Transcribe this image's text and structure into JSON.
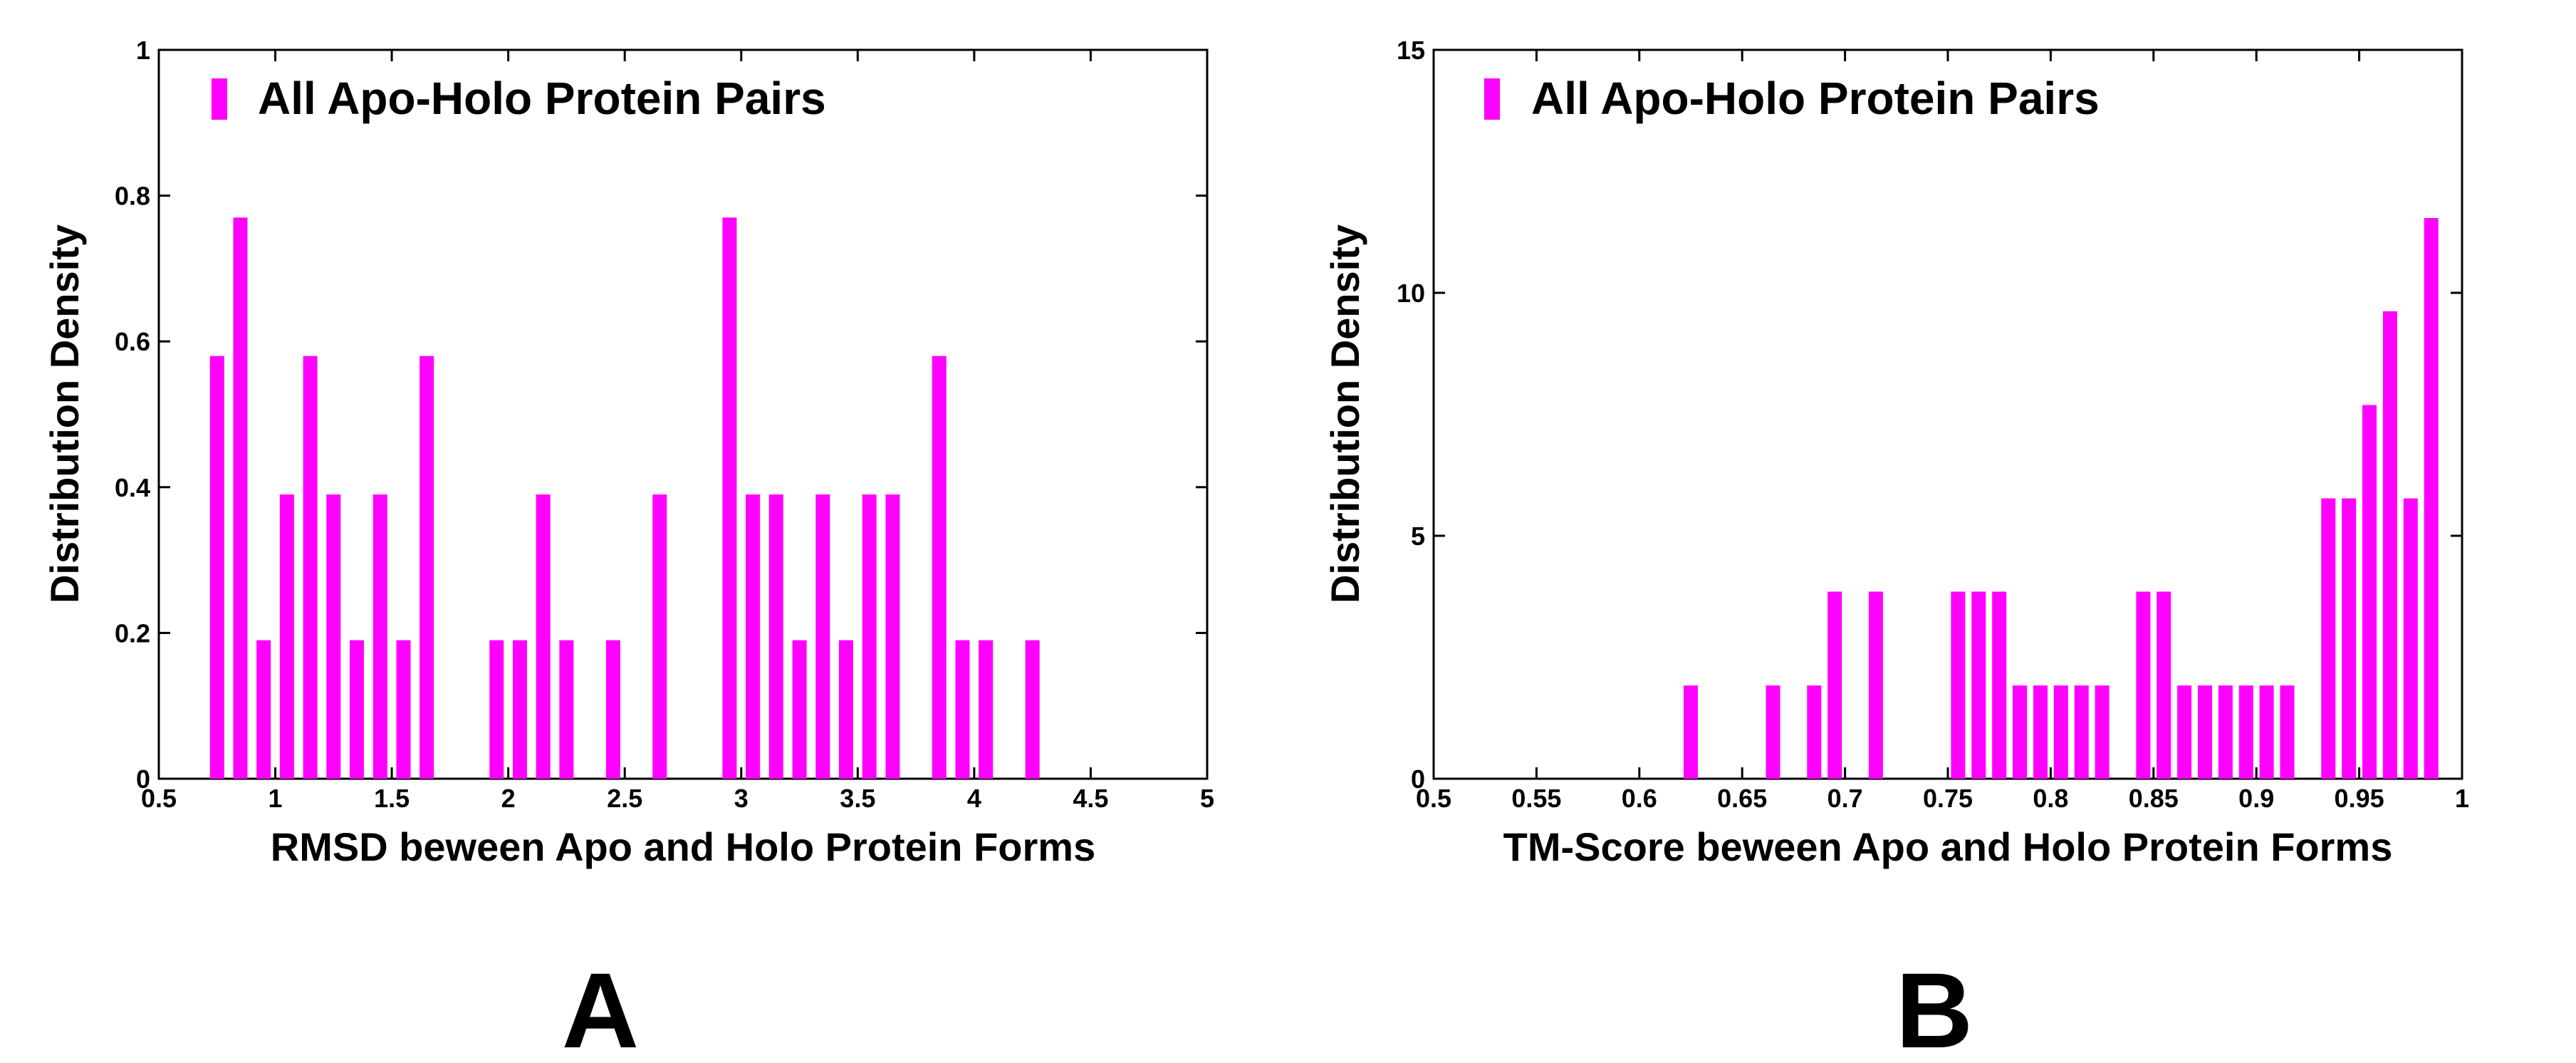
{
  "chart_data": [
    {
      "type": "bar",
      "panel_label": "A",
      "xlabel": "RMSD beween Apo and Holo Protein Forms",
      "ylabel": "Distribution Density",
      "xlim": [
        0.5,
        5
      ],
      "ylim": [
        0,
        1
      ],
      "x_ticks": [
        "0.5",
        "1",
        "1.5",
        "2",
        "2.5",
        "3",
        "3.5",
        "4",
        "4.5",
        "5"
      ],
      "y_ticks": [
        "0",
        "0.2",
        "0.4",
        "0.6",
        "0.8",
        "1"
      ],
      "bin_width": 0.1,
      "legend_position": "top-left",
      "series": [
        {
          "name": "All Apo-Holo Protein Pairs",
          "color": "#ff00ff",
          "x": [
            0.75,
            0.85,
            0.95,
            1.05,
            1.15,
            1.25,
            1.35,
            1.45,
            1.55,
            1.65,
            1.95,
            2.05,
            2.15,
            2.25,
            2.45,
            2.65,
            2.95,
            3.05,
            3.15,
            3.25,
            3.35,
            3.45,
            3.55,
            3.65,
            3.85,
            3.95,
            4.05,
            4.25
          ],
          "values": [
            0.58,
            0.77,
            0.19,
            0.39,
            0.58,
            0.39,
            0.19,
            0.39,
            0.19,
            0.58,
            0.19,
            0.19,
            0.39,
            0.19,
            0.19,
            0.39,
            0.77,
            0.39,
            0.39,
            0.19,
            0.39,
            0.19,
            0.39,
            0.39,
            0.58,
            0.19,
            0.19,
            0.19
          ]
        }
      ]
    },
    {
      "type": "bar",
      "panel_label": "B",
      "xlabel": "TM-Score beween Apo and Holo Protein Forms",
      "ylabel": "Distribution Density",
      "xlim": [
        0.5,
        1
      ],
      "ylim": [
        0,
        15
      ],
      "x_ticks": [
        "0.5",
        "0.55",
        "0.6",
        "0.65",
        "0.7",
        "0.75",
        "0.8",
        "0.85",
        "0.9",
        "0.95",
        "1"
      ],
      "y_ticks": [
        "0",
        "5",
        "10",
        "15"
      ],
      "bin_width": 0.01,
      "legend_position": "top-left",
      "series": [
        {
          "name": "All Apo-Holo Protein Pairs",
          "color": "#ff00ff",
          "x": [
            0.625,
            0.665,
            0.685,
            0.695,
            0.715,
            0.755,
            0.765,
            0.775,
            0.785,
            0.795,
            0.805,
            0.815,
            0.825,
            0.845,
            0.855,
            0.865,
            0.875,
            0.885,
            0.895,
            0.905,
            0.915,
            0.935,
            0.945,
            0.955,
            0.965,
            0.975,
            0.985
          ],
          "values": [
            1.92,
            1.92,
            1.92,
            3.85,
            3.85,
            3.85,
            3.85,
            3.85,
            1.92,
            1.92,
            1.92,
            1.92,
            1.92,
            3.85,
            3.85,
            1.92,
            1.92,
            1.92,
            1.92,
            1.92,
            1.92,
            5.77,
            5.77,
            7.69,
            9.62,
            5.77,
            11.54
          ]
        }
      ]
    }
  ]
}
